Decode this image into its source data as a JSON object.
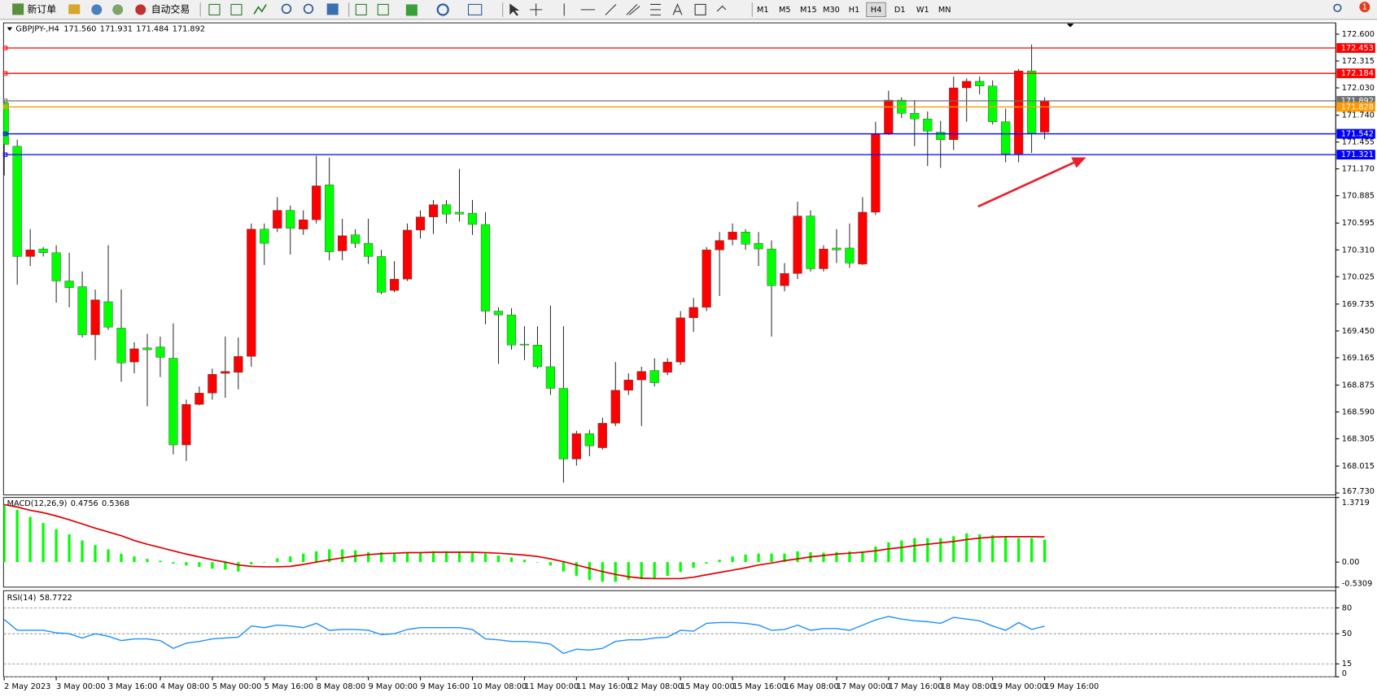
{
  "toolbar": {
    "new_order": "新订单",
    "auto_trade": "自动交易",
    "timeframes": [
      "M1",
      "M5",
      "M15",
      "M30",
      "H1",
      "H4",
      "D1",
      "W1",
      "MN"
    ],
    "notification": "1"
  },
  "header": {
    "symbol": "GBPJPY-,H4",
    "ohlc": [
      "171.560",
      "171.931",
      "171.484",
      "171.892"
    ]
  },
  "chart_data": [
    {
      "type": "candlestick",
      "up_color": "#ff0000",
      "down_color": "#00ff00",
      "wick_color": "#000000",
      "categories": [
        "2 May 2023",
        null,
        null,
        null,
        "3 May 00:00",
        null,
        null,
        null,
        "3 May 16:00",
        null,
        null,
        null,
        "4 May 08:00",
        null,
        null,
        null,
        "5 May 00:00",
        null,
        null,
        null,
        "5 May 16:00",
        null,
        null,
        null,
        "8 May 08:00",
        null,
        null,
        null,
        "9 May 00:00",
        null,
        null,
        null,
        "9 May 16:00",
        null,
        null,
        null,
        "10 May 08:00",
        null,
        null,
        null,
        "11 May 00:00",
        null,
        null,
        null,
        "11 May 16:00",
        null,
        null,
        null,
        "12 May 08:00",
        null,
        null,
        null,
        "15 May 00:00",
        null,
        null,
        null,
        "15 May 16:00",
        null,
        null,
        null,
        "16 May 08:00",
        null,
        null,
        null,
        "17 May 00:00",
        null,
        null,
        null,
        "17 May 16:00",
        null,
        null,
        null,
        "18 May 08:00",
        null,
        null,
        null,
        "19 May 00:00",
        null,
        null,
        null,
        "19 May 16:00"
      ],
      "open": [
        171.87,
        171.41,
        170.24,
        170.32,
        170.28,
        169.98,
        169.92,
        169.41,
        169.76,
        169.48,
        169.12,
        169.27,
        169.28,
        169.16,
        168.24,
        168.67,
        168.79,
        169.0,
        169.01,
        169.18,
        170.53,
        170.54,
        170.73,
        170.53,
        170.63,
        171.0,
        170.3,
        170.47,
        170.38,
        170.24,
        169.88,
        170.0,
        170.52,
        170.66,
        170.79,
        170.71,
        170.7,
        170.58,
        169.66,
        169.62,
        169.31,
        169.3,
        169.07,
        168.84,
        168.09,
        168.36,
        168.21,
        168.47,
        168.82,
        168.93,
        169.03,
        169.01,
        169.12,
        169.59,
        169.7,
        170.31,
        170.42,
        170.5,
        170.38,
        170.32,
        169.93,
        170.06,
        170.67,
        170.11,
        170.33,
        170.33,
        170.16,
        170.71,
        171.54,
        171.9,
        171.76,
        171.7,
        171.56,
        171.48,
        172.03,
        172.1,
        172.05,
        171.67,
        171.33,
        172.21,
        171.56
      ],
      "high": [
        171.9,
        171.48,
        170.53,
        170.34,
        170.36,
        170.28,
        170.08,
        169.89,
        170.36,
        169.89,
        169.33,
        169.42,
        169.39,
        169.53,
        168.72,
        168.86,
        169.05,
        169.39,
        169.38,
        170.59,
        170.59,
        170.87,
        170.78,
        170.73,
        171.31,
        171.29,
        170.64,
        170.53,
        170.64,
        170.31,
        170.19,
        170.59,
        170.73,
        170.84,
        170.84,
        171.17,
        170.84,
        170.71,
        169.7,
        169.69,
        169.5,
        169.5,
        169.72,
        169.5,
        168.39,
        168.4,
        168.53,
        169.12,
        169.0,
        169.07,
        169.16,
        169.16,
        169.66,
        169.8,
        170.34,
        170.5,
        170.59,
        170.53,
        170.5,
        170.41,
        170.17,
        170.82,
        170.73,
        170.36,
        170.53,
        170.59,
        170.87,
        171.67,
        172.0,
        171.93,
        171.9,
        171.78,
        171.68,
        172.15,
        172.13,
        172.15,
        172.11,
        171.81,
        172.23,
        172.49,
        171.931
      ],
      "low": [
        171.1,
        169.94,
        170.14,
        170.24,
        169.75,
        169.7,
        169.38,
        169.14,
        169.46,
        168.91,
        169.0,
        168.65,
        168.96,
        168.14,
        168.07,
        168.66,
        168.72,
        168.74,
        168.83,
        169.07,
        170.15,
        170.5,
        170.26,
        170.47,
        170.59,
        170.2,
        170.2,
        170.33,
        170.16,
        169.84,
        169.86,
        169.98,
        170.43,
        170.48,
        170.59,
        170.61,
        170.47,
        169.52,
        169.1,
        169.25,
        169.14,
        169.05,
        168.77,
        167.84,
        168.02,
        168.12,
        168.19,
        168.44,
        168.77,
        168.44,
        168.86,
        168.98,
        169.09,
        169.44,
        169.66,
        169.82,
        170.36,
        170.31,
        170.14,
        169.39,
        169.87,
        170.0,
        170.08,
        170.08,
        170.17,
        170.12,
        170.15,
        170.68,
        171.53,
        171.71,
        171.41,
        171.2,
        171.18,
        171.37,
        171.67,
        171.96,
        171.64,
        171.24,
        171.24,
        171.34,
        171.484
      ],
      "close": [
        171.43,
        170.24,
        170.31,
        170.28,
        169.98,
        169.91,
        169.41,
        169.78,
        169.49,
        169.11,
        169.26,
        169.25,
        169.17,
        168.24,
        168.67,
        168.79,
        168.99,
        169.02,
        169.18,
        170.53,
        170.38,
        170.73,
        170.54,
        170.63,
        170.99,
        170.29,
        170.46,
        170.38,
        170.24,
        169.86,
        170.0,
        170.52,
        170.66,
        170.79,
        170.69,
        170.69,
        170.58,
        169.66,
        169.62,
        169.3,
        169.3,
        169.07,
        168.84,
        168.09,
        168.36,
        168.23,
        168.47,
        168.82,
        168.93,
        169.02,
        168.9,
        169.12,
        169.59,
        169.7,
        170.31,
        170.41,
        170.5,
        170.37,
        170.32,
        169.93,
        170.06,
        170.67,
        170.11,
        170.32,
        170.31,
        170.17,
        170.71,
        171.54,
        171.9,
        171.76,
        171.7,
        171.57,
        171.48,
        172.03,
        172.1,
        172.05,
        171.67,
        171.33,
        172.21,
        171.55,
        171.892
      ],
      "ylim": [
        167.71,
        172.72
      ],
      "yticks": [
        {
          "value": 172.6,
          "label": "172.600"
        },
        {
          "value": 172.315,
          "label": "172.315"
        },
        {
          "value": 172.03,
          "label": "172.030"
        },
        {
          "value": 171.74,
          "label": "171.740"
        },
        {
          "value": 171.455,
          "label": "171.455"
        },
        {
          "value": 171.17,
          "label": "171.170"
        },
        {
          "value": 170.885,
          "label": "170.885"
        },
        {
          "value": 170.595,
          "label": "170.595"
        },
        {
          "value": 170.31,
          "label": "170.310"
        },
        {
          "value": 170.025,
          "label": "170.025"
        },
        {
          "value": 169.735,
          "label": "169.735"
        },
        {
          "value": 169.45,
          "label": "169.450"
        },
        {
          "value": 169.165,
          "label": "169.165"
        },
        {
          "value": 168.875,
          "label": "168.875"
        },
        {
          "value": 168.59,
          "label": "168.590"
        },
        {
          "value": 168.305,
          "label": "168.305"
        },
        {
          "value": 168.015,
          "label": "168.015"
        },
        {
          "value": 167.73,
          "label": "167.730"
        }
      ],
      "grid": false,
      "levels": [
        {
          "value": 172.453,
          "color": "#ff0000"
        },
        {
          "value": 172.184,
          "color": "#ff0000"
        },
        {
          "value": 171.892,
          "color": "#707070"
        },
        {
          "value": 171.828,
          "color": "#ff9900"
        },
        {
          "value": 171.542,
          "color": "#0000ff"
        },
        {
          "value": 171.321,
          "color": "#0000ff"
        }
      ]
    },
    {
      "type": "bar",
      "title": "MACD(12,26,9)",
      "ylim": [
        -0.5309,
        1.3719
      ],
      "yticks": [
        1.3719,
        {
          "value": 0,
          "label": "0.00"
        },
        -0.5309
      ],
      "grid": false,
      "series": [
        {
          "type": "bar",
          "color": "#00ff00",
          "values": [
            1.2,
            1.11,
            0.96,
            0.83,
            0.7,
            0.59,
            0.46,
            0.36,
            0.27,
            0.18,
            0.12,
            0.07,
            0.03,
            -0.03,
            -0.07,
            -0.1,
            -0.14,
            -0.16,
            -0.2,
            -0.05,
            -0.01,
            0.08,
            0.12,
            0.18,
            0.23,
            0.27,
            0.27,
            0.25,
            0.21,
            0.21,
            0.2,
            0.21,
            0.21,
            0.23,
            0.23,
            0.23,
            0.21,
            0.18,
            0.14,
            0.1,
            0.05,
            -0.01,
            -0.07,
            -0.2,
            -0.29,
            -0.38,
            -0.42,
            -0.42,
            -0.38,
            -0.36,
            -0.35,
            -0.29,
            -0.21,
            -0.12,
            -0.03,
            0.05,
            0.12,
            0.16,
            0.18,
            0.18,
            0.18,
            0.23,
            0.21,
            0.2,
            0.21,
            0.23,
            0.23,
            0.33,
            0.42,
            0.46,
            0.51,
            0.51,
            0.51,
            0.55,
            0.61,
            0.59,
            0.57,
            0.53,
            0.51,
            0.51,
            0.4756
          ]
        },
        {
          "type": "line",
          "color": "#e00000",
          "values": [
            1.22,
            1.17,
            1.1,
            1.05,
            0.98,
            0.9,
            0.81,
            0.72,
            0.64,
            0.56,
            0.46,
            0.38,
            0.31,
            0.24,
            0.17,
            0.11,
            0.05,
            0.0,
            -0.06,
            -0.09,
            -0.1,
            -0.1,
            -0.09,
            -0.05,
            0.0,
            0.05,
            0.09,
            0.13,
            0.16,
            0.18,
            0.19,
            0.2,
            0.2,
            0.21,
            0.21,
            0.21,
            0.21,
            0.2,
            0.19,
            0.17,
            0.15,
            0.12,
            0.07,
            0.01,
            -0.06,
            -0.13,
            -0.2,
            -0.26,
            -0.31,
            -0.34,
            -0.35,
            -0.35,
            -0.35,
            -0.32,
            -0.27,
            -0.22,
            -0.17,
            -0.12,
            -0.06,
            -0.02,
            0.03,
            0.07,
            0.11,
            0.14,
            0.17,
            0.19,
            0.21,
            0.24,
            0.28,
            0.31,
            0.35,
            0.38,
            0.41,
            0.44,
            0.48,
            0.51,
            0.53,
            0.54,
            0.54,
            0.54,
            0.5368
          ]
        }
      ]
    },
    {
      "type": "line",
      "title": "RSI(14)",
      "ylim": [
        0,
        100
      ],
      "yticks": [
        80,
        50,
        15,
        0
      ],
      "grid": true,
      "series": [
        {
          "type": "line",
          "color": "#1e90ff",
          "values": [
            66.5,
            54,
            54,
            54,
            51,
            50,
            45,
            50,
            47,
            42,
            44,
            44,
            42,
            33,
            39,
            41,
            44,
            45,
            46,
            59,
            57,
            60,
            59,
            57,
            62,
            54,
            55,
            55,
            54,
            49,
            50,
            55,
            57,
            57,
            57,
            57,
            55,
            44,
            43,
            41,
            41,
            40,
            38,
            27,
            32,
            31,
            33,
            41,
            43,
            43,
            45,
            46,
            54,
            53,
            62,
            63,
            63,
            62,
            60,
            54,
            55,
            60,
            54,
            56,
            56,
            54,
            60,
            66,
            70,
            67,
            65,
            64,
            62,
            69,
            67,
            65,
            59,
            54,
            63,
            55,
            58.7722
          ]
        }
      ]
    }
  ]
}
